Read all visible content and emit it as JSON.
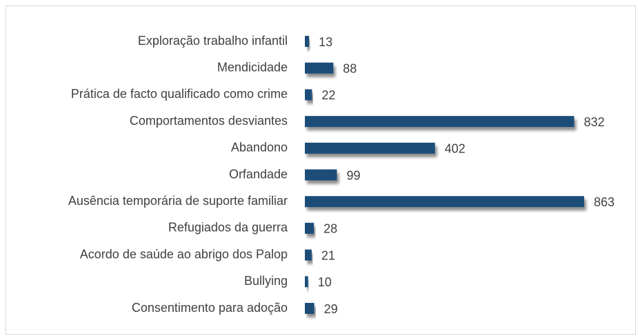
{
  "chart_data": {
    "type": "bar",
    "orientation": "horizontal",
    "categories": [
      "Exploração trabalho infantil",
      "Mendicidade",
      "Prática de facto qualificado como crime",
      "Comportamentos desviantes",
      "Abandono",
      "Orfandade",
      "Ausência temporária de suporte familiar",
      "Refugiados da guerra",
      "Acordo de saúde ao abrigo dos Palop",
      "Bullying",
      "Consentimento para adoção"
    ],
    "values": [
      13,
      88,
      22,
      832,
      402,
      99,
      863,
      28,
      21,
      10,
      29
    ],
    "color": "#1f4e79"
  }
}
